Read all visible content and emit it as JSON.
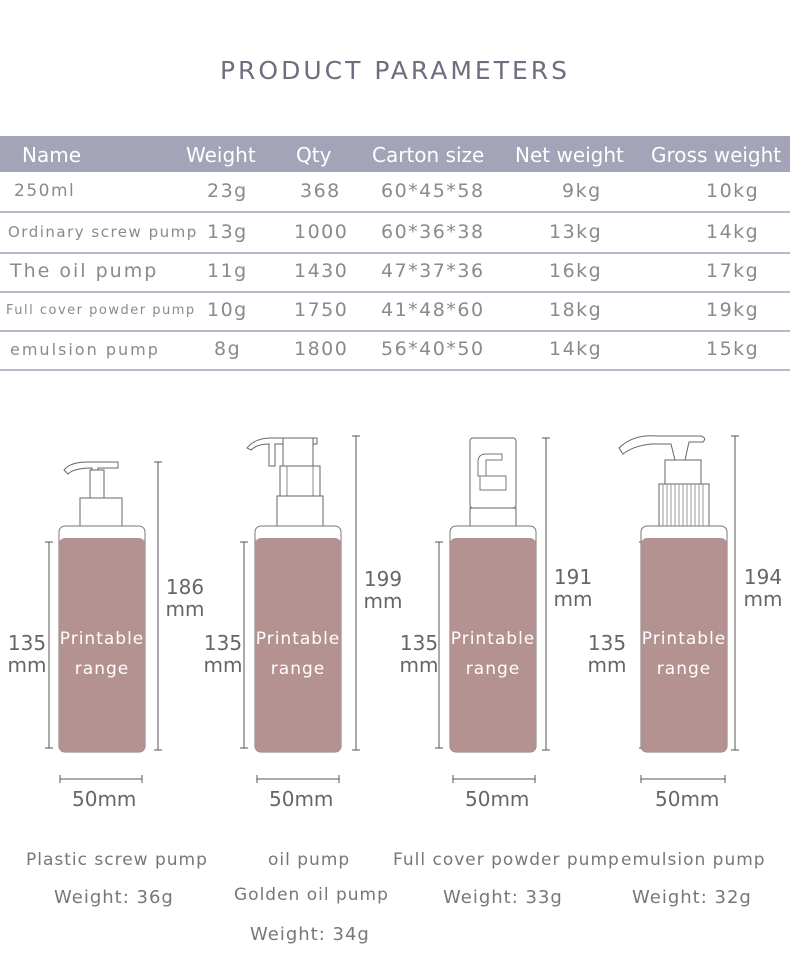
{
  "page": {
    "title": "PRODUCT PARAMETERS"
  },
  "table": {
    "headers": [
      "Name",
      "Weight",
      "Qty",
      "Carton size",
      "Net weight",
      "Gross weight"
    ],
    "rows": [
      {
        "name": "250ml",
        "weight": "23g",
        "qty": "368",
        "carton": "60*45*58",
        "net": "9kg",
        "gross": "10kg"
      },
      {
        "name": "Ordinary screw pump",
        "weight": "13g",
        "qty": "1000",
        "carton": "60*36*38",
        "net": "13kg",
        "gross": "14kg"
      },
      {
        "name": "The oil pump",
        "weight": "11g",
        "qty": "1430",
        "carton": "47*37*36",
        "net": "16kg",
        "gross": "17kg"
      },
      {
        "name": "Full cover powder pump",
        "weight": "10g",
        "qty": "1750",
        "carton": "41*48*60",
        "net": "18kg",
        "gross": "19kg"
      },
      {
        "name": "emulsion pump",
        "weight": "8g",
        "qty": "1800",
        "carton": "56*40*50",
        "net": "14kg",
        "gross": "15kg"
      }
    ]
  },
  "products": [
    {
      "height_value": "186",
      "height_unit": "mm",
      "body_value": "135",
      "body_unit": "mm",
      "printable_1": "Printable",
      "printable_2": "range",
      "width": "50mm",
      "name": "Plastic screw pump",
      "name2": "",
      "weight": "Weight:  36g",
      "pump": "screw"
    },
    {
      "height_value": "199",
      "height_unit": "mm",
      "body_value": "135",
      "body_unit": "mm",
      "printable_1": "Printable",
      "printable_2": "range",
      "width": "50mm",
      "name": "oil pump",
      "name2": "Golden oil pump",
      "weight": "Weight:  34g",
      "pump": "oil"
    },
    {
      "height_value": "191",
      "height_unit": "mm",
      "body_value": "135",
      "body_unit": "mm",
      "printable_1": "Printable",
      "printable_2": "range",
      "width": "50mm",
      "name": "Full cover powder pump",
      "name2": "",
      "weight": "Weight:  33g",
      "pump": "cover"
    },
    {
      "height_value": "194",
      "height_unit": "mm",
      "body_value": "135",
      "body_unit": "mm",
      "printable_1": "Printable",
      "printable_2": "range",
      "width": "50mm",
      "name": "emulsion pump",
      "name2": "",
      "weight": "Weight:  32g",
      "pump": "emulsion"
    }
  ],
  "colors": {
    "header_bg": "#a4a4b8",
    "bottle_fill": "#b49292",
    "line": "#b8b8c8"
  }
}
